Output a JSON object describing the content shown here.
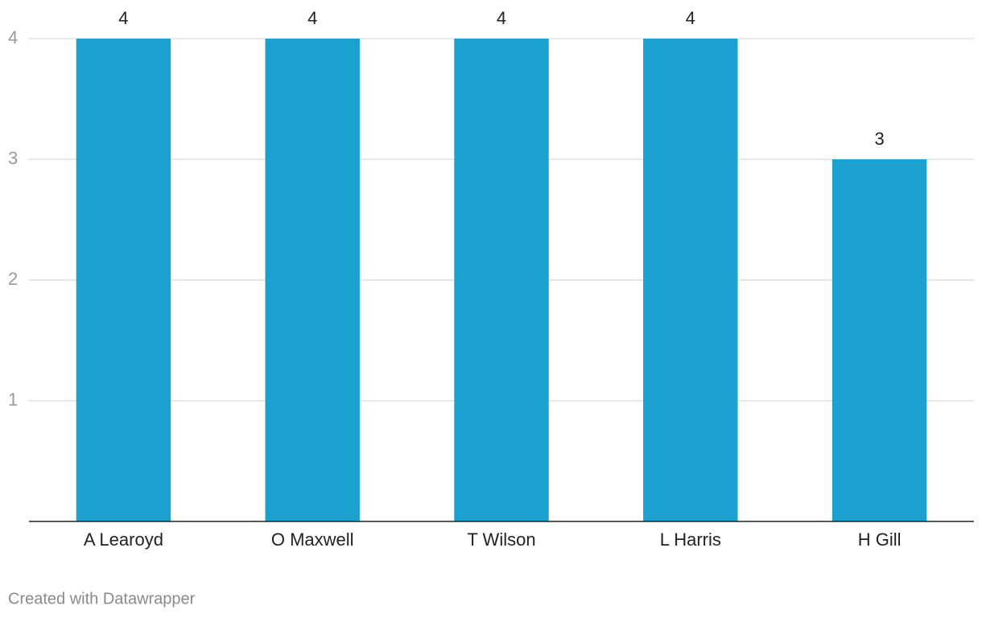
{
  "chart_data": {
    "type": "bar",
    "categories": [
      "A Learoyd",
      "O Maxwell",
      "T Wilson",
      "L Harris",
      "H Gill"
    ],
    "values": [
      4,
      4,
      4,
      4,
      3
    ],
    "color": "#1aa1cf",
    "ylim": [
      0,
      4
    ],
    "yticks": [
      1,
      2,
      3,
      4
    ],
    "grid": true,
    "footer": "Created with Datawrapper"
  }
}
